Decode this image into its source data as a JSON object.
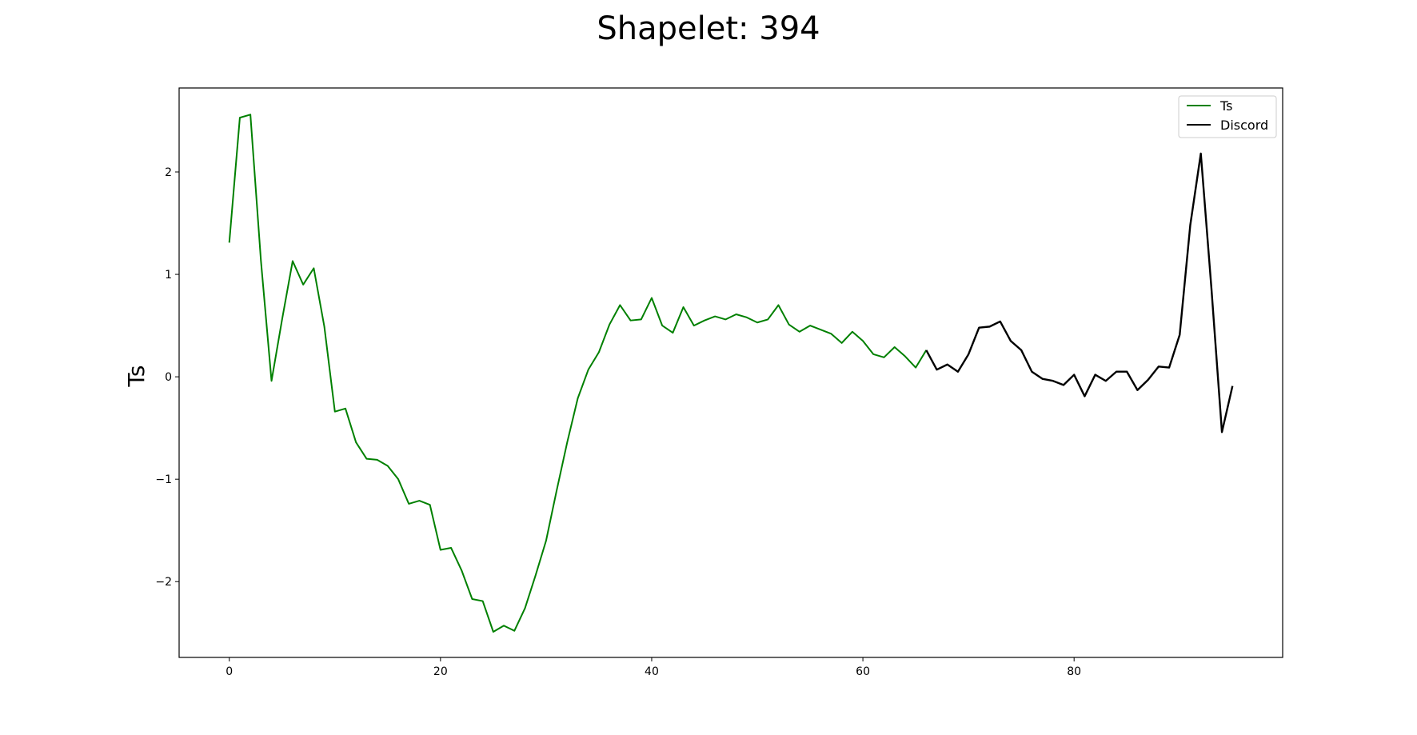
{
  "chart_data": {
    "type": "line",
    "title": "Shapelet: 394",
    "xlabel": "",
    "ylabel": "Ts",
    "xlim": [
      -4.75,
      99.75
    ],
    "ylim": [
      -2.74,
      2.82
    ],
    "xticks": [
      0,
      20,
      40,
      60,
      80
    ],
    "yticks": [
      -2,
      -1,
      0,
      1,
      2
    ],
    "xtick_labels": [
      "0",
      "20",
      "40",
      "60",
      "80"
    ],
    "ytick_labels": [
      "−2",
      "−1",
      "0",
      "1",
      "2"
    ],
    "grid": false,
    "legend_position": "top-right",
    "series": [
      {
        "name": "Ts",
        "color": "#008000",
        "x_start": 0,
        "values": [
          1.31,
          2.53,
          2.56,
          1.13,
          -0.04,
          0.56,
          1.13,
          0.9,
          1.06,
          0.49,
          -0.34,
          -0.31,
          -0.64,
          -0.8,
          -0.81,
          -0.87,
          -1.0,
          -1.24,
          -1.21,
          -1.25,
          -1.69,
          -1.67,
          -1.89,
          -2.17,
          -2.19,
          -2.49,
          -2.43,
          -2.48,
          -2.26,
          -1.94,
          -1.6,
          -1.11,
          -0.64,
          -0.21,
          0.07,
          0.24,
          0.51,
          0.7,
          0.55,
          0.56,
          0.77,
          0.5,
          0.43,
          0.68,
          0.5,
          0.55,
          0.59,
          0.56,
          0.61,
          0.58,
          0.53,
          0.56,
          0.7,
          0.51,
          0.44,
          0.5,
          0.46,
          0.42,
          0.33,
          0.44,
          0.35,
          0.22,
          0.19,
          0.29,
          0.2,
          0.09,
          0.26
        ]
      },
      {
        "name": "Discord",
        "color": "#000000",
        "x_start": 66,
        "values": [
          0.26,
          0.07,
          0.12,
          0.05,
          0.22,
          0.48,
          0.49,
          0.54,
          0.35,
          0.26,
          0.05,
          -0.02,
          -0.04,
          -0.08,
          0.02,
          -0.19,
          0.02,
          -0.04,
          0.05,
          0.05,
          -0.13,
          -0.03,
          0.1,
          0.09,
          0.41,
          1.48,
          2.18,
          0.87,
          -0.54,
          -0.09
        ]
      }
    ]
  }
}
